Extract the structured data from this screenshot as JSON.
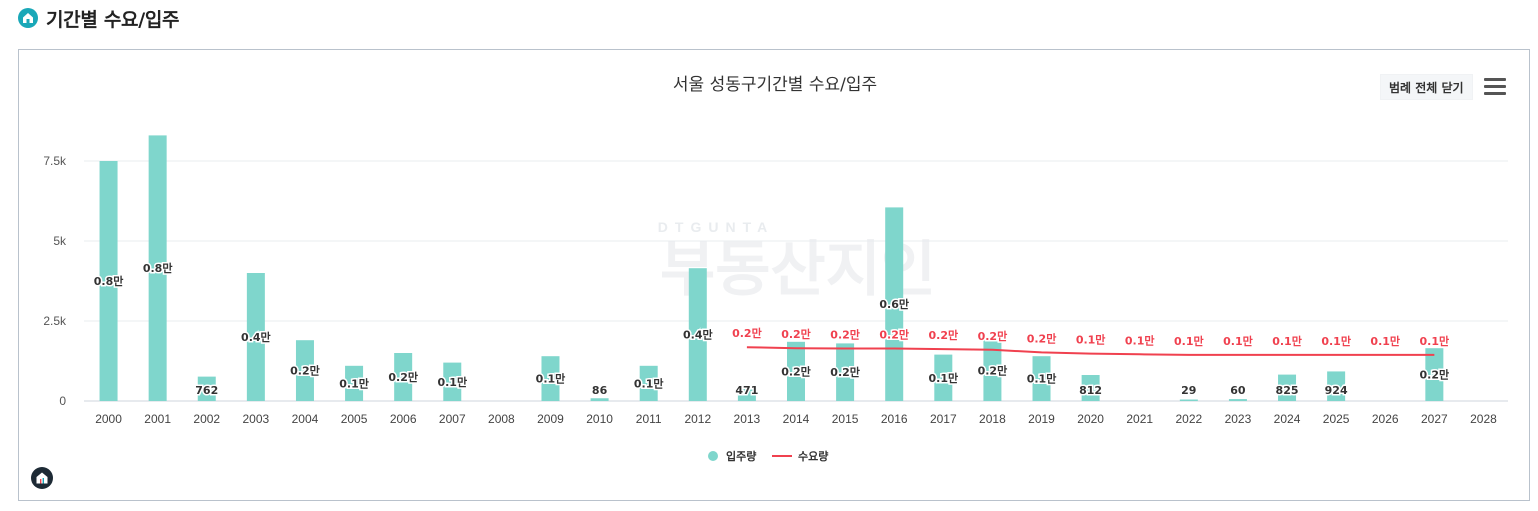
{
  "section": {
    "title": "기간별 수요/입주"
  },
  "toolbar": {
    "legend_toggle_label": "범례 전체 닫기"
  },
  "watermark": {
    "text": "부동산지인",
    "subtext": "DTGUNTA"
  },
  "colors": {
    "bar": "#7fd6cc",
    "line": "#f0414f",
    "accent": "#1aa8b8",
    "grid": "#e8ecef"
  },
  "chart_data": {
    "type": "bar",
    "title": "서울 성동구기간별 수요/입주",
    "xlabel": "",
    "ylabel": "",
    "ylim": [
      0,
      9000
    ],
    "yticks": [
      {
        "value": 0,
        "label": "0"
      },
      {
        "value": 2500,
        "label": "2.5k"
      },
      {
        "value": 5000,
        "label": "5k"
      },
      {
        "value": 7500,
        "label": "7.5k"
      }
    ],
    "categories": [
      "2000",
      "2001",
      "2002",
      "2003",
      "2004",
      "2005",
      "2006",
      "2007",
      "2008",
      "2009",
      "2010",
      "2011",
      "2012",
      "2013",
      "2014",
      "2015",
      "2016",
      "2017",
      "2018",
      "2019",
      "2020",
      "2021",
      "2022",
      "2023",
      "2024",
      "2025",
      "2026",
      "2027",
      "2028"
    ],
    "series": [
      {
        "name": "입주량",
        "type": "bar",
        "values": [
          7500,
          8300,
          762,
          4000,
          1900,
          1100,
          1500,
          1200,
          null,
          1400,
          86,
          1100,
          4150,
          471,
          1850,
          1800,
          6050,
          1450,
          1900,
          1400,
          812,
          null,
          29,
          60,
          825,
          924,
          null,
          1650,
          null
        ],
        "labels": [
          "0.8만",
          "0.8만",
          "762",
          "0.4만",
          "0.2만",
          "0.1만",
          "0.2만",
          "0.1만",
          "",
          "0.1만",
          "86",
          "0.1만",
          "0.4만",
          "471",
          "0.2만",
          "0.2만",
          "0.6만",
          "0.1만",
          "0.2만",
          "0.1만",
          "812",
          "",
          "29",
          "60",
          "825",
          "924",
          "",
          "0.2만",
          ""
        ]
      },
      {
        "name": "수요량",
        "type": "line",
        "values": [
          null,
          null,
          null,
          null,
          null,
          null,
          null,
          null,
          null,
          null,
          null,
          null,
          null,
          1680,
          1650,
          1640,
          1640,
          1620,
          1600,
          1520,
          1480,
          1460,
          1440,
          1440,
          1440,
          1440,
          1440,
          1440,
          null
        ],
        "labels": [
          "",
          "",
          "",
          "",
          "",
          "",
          "",
          "",
          "",
          "",
          "",
          "",
          "",
          "0.2만",
          "0.2만",
          "0.2만",
          "0.2만",
          "0.2만",
          "0.2만",
          "0.2만",
          "0.1만",
          "0.1만",
          "0.1만",
          "0.1만",
          "0.1만",
          "0.1만",
          "0.1만",
          "0.1만",
          ""
        ]
      }
    ],
    "legend": {
      "position": "bottom",
      "items": [
        "입주량",
        "수요량"
      ]
    },
    "grid": true
  }
}
